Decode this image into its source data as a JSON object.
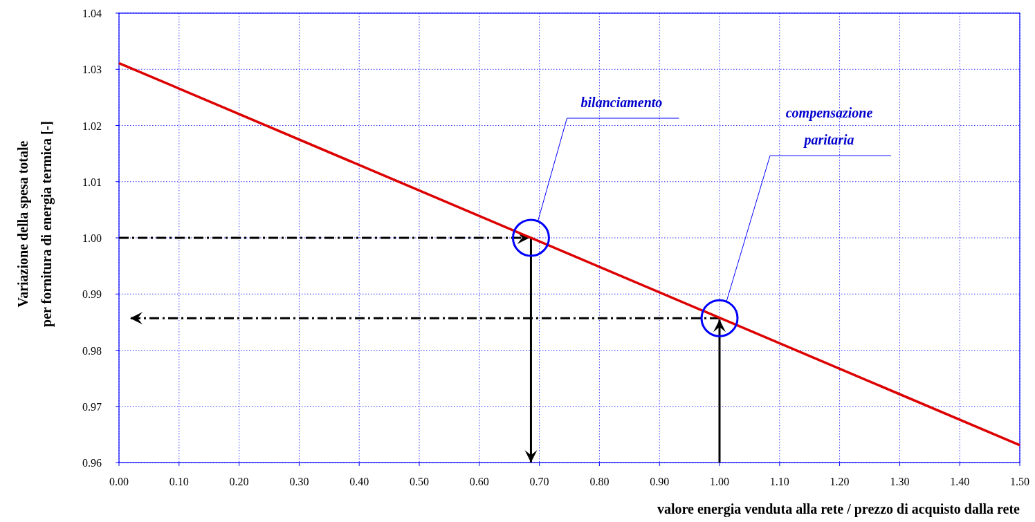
{
  "chart_data": {
    "type": "line",
    "xlabel": "valore energia venduta alla rete / prezzo di acquisto dalla rete",
    "ylabel": "Variazione della spesa totale\nper fornitura di energia termica [-]",
    "x": [
      0,
      1.5
    ],
    "series": [
      {
        "color": "#dd0000",
        "values": [
          1.0311,
          0.9631
        ]
      },
      {
        "type": "scatter",
        "color": "#0000ff",
        "marker": "circle",
        "x": [
          0.686,
          1.0
        ],
        "values": [
          1.0,
          0.9857
        ]
      }
    ],
    "xlim": [
      0,
      1.5
    ],
    "ylim": [
      0.96,
      1.04
    ],
    "xticks": [
      {
        "value": 0,
        "label": "0.00"
      },
      {
        "value": 0.1,
        "label": "0.10"
      },
      {
        "value": 0.2,
        "label": "0.20"
      },
      {
        "value": 0.3,
        "label": "0.30"
      },
      {
        "value": 0.4,
        "label": "0.40"
      },
      {
        "value": 0.5,
        "label": "0.50"
      },
      {
        "value": 0.6,
        "label": "0.60"
      },
      {
        "value": 0.7,
        "label": "0.70"
      },
      {
        "value": 0.8,
        "label": "0.80"
      },
      {
        "value": 0.9,
        "label": "0.90"
      },
      {
        "value": 1.0,
        "label": "1.00"
      },
      {
        "value": 1.1,
        "label": "1.10"
      },
      {
        "value": 1.2,
        "label": "1.20"
      },
      {
        "value": 1.3,
        "label": "1.30"
      },
      {
        "value": 1.4,
        "label": "1.40"
      },
      {
        "value": 1.5,
        "label": "1.50"
      }
    ],
    "yticks": [
      0.96,
      0.97,
      0.98,
      0.99,
      {
        "value": 1.0,
        "label": "1.00"
      },
      1.01,
      1.02,
      1.03,
      1.04
    ],
    "grid": true,
    "marker": "none",
    "line_style": "solid",
    "annotations": [
      "bilanciamento",
      "compensazione\nparitaria"
    ]
  }
}
